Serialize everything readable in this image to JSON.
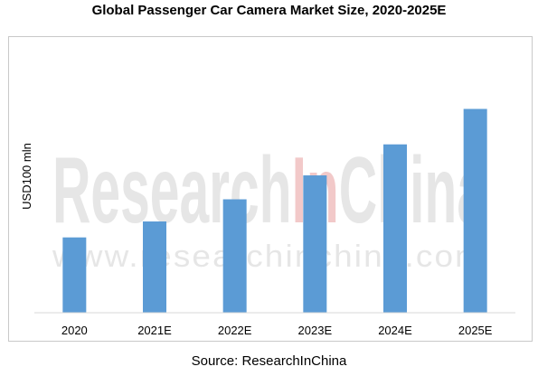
{
  "title": "Global Passenger Car Camera Market Size, 2020-2025E",
  "source": "Source: ResearchInChina",
  "watermark": {
    "brand_part1": "Research",
    "brand_part2": "In",
    "brand_part3": "China",
    "url": "www.researchinchina.com"
  },
  "colors": {
    "bar": "#5b9bd5",
    "axis": "#d9d9d9",
    "watermark_red": "#f2c9c9",
    "watermark_gray": "#e6e6e6"
  },
  "chart_data": {
    "type": "bar",
    "title": "Global Passenger Car Camera Market Size, 2020-2025E",
    "xlabel": "",
    "ylabel": "USD100 mln",
    "categories": [
      "2020",
      "2021E",
      "2022E",
      "2023E",
      "2024E",
      "2025E"
    ],
    "values": [
      85,
      103,
      128,
      155,
      190,
      230
    ],
    "ylim": [
      0,
      255
    ],
    "grid": false,
    "legend": "none"
  }
}
